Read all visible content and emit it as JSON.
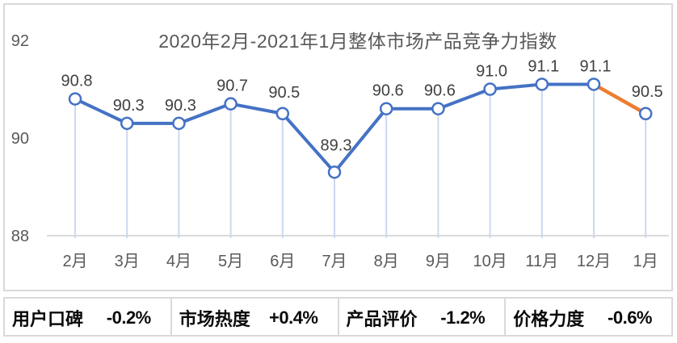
{
  "chart_data": {
    "type": "line",
    "title": "2020年2月-2021年1月整体市场产品竞争力指数",
    "categories": [
      "2月",
      "3月",
      "4月",
      "5月",
      "6月",
      "7月",
      "8月",
      "9月",
      "10月",
      "11月",
      "12月",
      "1月"
    ],
    "values": [
      90.8,
      90.3,
      90.3,
      90.7,
      90.5,
      89.3,
      90.6,
      90.6,
      91.0,
      91.1,
      91.1,
      90.5
    ],
    "data_labels": [
      "90.8",
      "90.3",
      "90.3",
      "90.7",
      "90.5",
      "89.3",
      "90.6",
      "90.6",
      "91.0",
      "91.1",
      "91.1",
      "90.5"
    ],
    "yticks": [
      "92",
      "90",
      "88"
    ],
    "ytick_values": [
      92,
      90,
      88
    ],
    "ylim": [
      88,
      92.8
    ],
    "grid": false,
    "legend": "none",
    "highlight_last_segment": true,
    "colors": {
      "line": "#4472C4",
      "last_segment": "#ED7D31",
      "marker_fill": "#FFFFFF",
      "marker_stroke": "#4472C4",
      "drop_line": "#CBD8F1",
      "axis_line": "#D9D9D9",
      "axis_text": "#595959",
      "data_label": "#404040",
      "title": "#595959"
    }
  },
  "stats": [
    {
      "label": "用户口碑",
      "value": "-0.2%"
    },
    {
      "label": "市场热度",
      "value": "+0.4%"
    },
    {
      "label": "产品评价",
      "value": "-1.2%"
    },
    {
      "label": "价格力度",
      "value": "-0.6%"
    }
  ]
}
